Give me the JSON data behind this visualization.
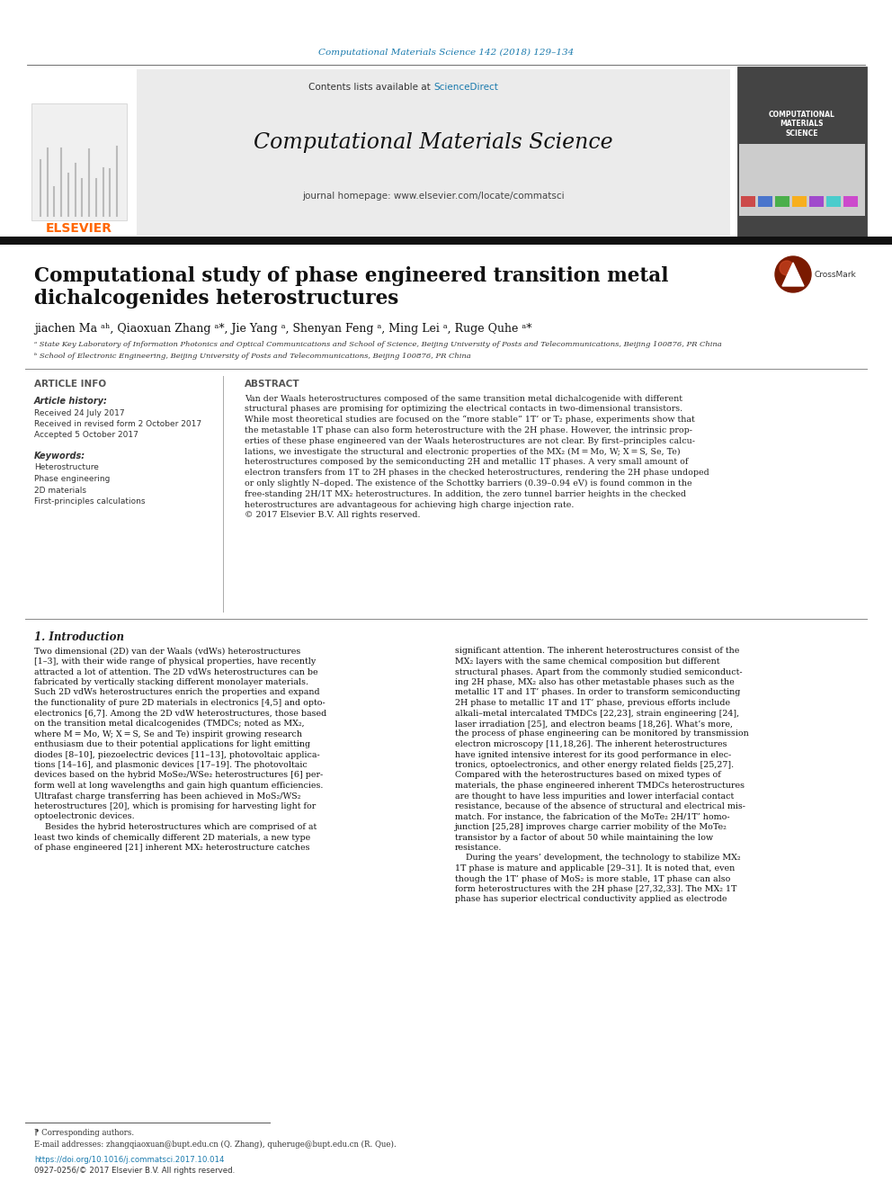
{
  "journal_ref": "Computational Materials Science 142 (2018) 129–134",
  "journal_ref_color": "#1a7aad",
  "header_bg": "#ebebeb",
  "contents_line": "Contents lists available at ",
  "sciencedirect": "ScienceDirect",
  "sciencedirect_color": "#1a7aad",
  "journal_title": "Computational Materials Science",
  "journal_homepage": "journal homepage: www.elsevier.com/locate/commatsci",
  "elsevier_color": "#ff6600",
  "paper_title_line1": "Computational study of phase engineered transition metal",
  "paper_title_line2": "dichalcogenides heterostructures",
  "authors_line": "jiachen Ma ᵃʰ, Qiaoxuan Zhang ᵃ*, Jie Yang ᵃ, Shenyan Feng ᵃ, Ming Lei ᵃ, Ruge Quhe ᵃ*",
  "affil_a": "ᵃ State Key Laboratory of Information Photonics and Optical Communications and School of Science, Beijing University of Posts and Telecommunications, Beijing 100876, PR China",
  "affil_b": "ᵇ School of Electronic Engineering, Beijing University of Posts and Telecommunications, Beijing 100876, PR China",
  "article_info_title": "ARTICLE INFO",
  "abstract_title": "ABSTRACT",
  "article_history_title": "Article history:",
  "received": "Received 24 July 2017",
  "revised": "Received in revised form 2 October 2017",
  "accepted": "Accepted 5 October 2017",
  "keywords_title": "Keywords:",
  "keywords": [
    "Heterostructure",
    "Phase engineering",
    "2D materials",
    "First-principles calculations"
  ],
  "abstract_text": "Van der Waals heterostructures composed of the same transition metal dichalcogenide with different\nstructural phases are promising for optimizing the electrical contacts in two-dimensional transistors.\nWhile most theoretical studies are focused on the “more stable” 1T’ or T₂ phase, experiments show that\nthe metastable 1T phase can also form heterostructure with the 2H phase. However, the intrinsic prop-\nerties of these phase engineered van der Waals heterostructures are not clear. By first–principles calcu-\nlations, we investigate the structural and electronic properties of the MX₂ (M = Mo, W; X = S, Se, Te)\nheterostructures composed by the semiconducting 2H and metallic 1T phases. A very small amount of\nelectron transfers from 1T to 2H phases in the checked heterostructures, rendering the 2H phase undoped\nor only slightly N–doped. The existence of the Schottky barriers (0.39–0.94 eV) is found common in the\nfree-standing 2H/1T MX₂ heterostructures. In addition, the zero tunnel barrier heights in the checked\nheterostructures are advantageous for achieving high charge injection rate.\n© 2017 Elsevier B.V. All rights reserved.",
  "intro_title": "1. Introduction",
  "intro_col1_lines": [
    "Two dimensional (2D) van der Waals (vdWs) heterostructures",
    "[1–3], with their wide range of physical properties, have recently",
    "attracted a lot of attention. The 2D vdWs heterostructures can be",
    "fabricated by vertically stacking different monolayer materials.",
    "Such 2D vdWs heterostructures enrich the properties and expand",
    "the functionality of pure 2D materials in electronics [4,5] and opto-",
    "electronics [6,7]. Among the 2D vdW heterostructures, those based",
    "on the transition metal dicalcogenides (TMDCs; noted as MX₂,",
    "where M = Mo, W; X = S, Se and Te) inspirit growing research",
    "enthusiasm due to their potential applications for light emitting",
    "diodes [8–10], piezoelectric devices [11–13], photovoltaic applica-",
    "tions [14–16], and plasmonic devices [17–19]. The photovoltaic",
    "devices based on the hybrid MoSe₂/WSe₂ heterostructures [6] per-",
    "form well at long wavelengths and gain high quantum efficiencies.",
    "Ultrafast charge transferring has been achieved in MoS₂/WS₂",
    "heterostructures [20], which is promising for harvesting light for",
    "optoelectronic devices.",
    "    Besides the hybrid heterostructures which are comprised of at",
    "least two kinds of chemically different 2D materials, a new type",
    "of phase engineered [21] inherent MX₂ heterostructure catches"
  ],
  "intro_col2_lines": [
    "significant attention. The inherent heterostructures consist of the",
    "MX₂ layers with the same chemical composition but different",
    "structural phases. Apart from the commonly studied semiconduct-",
    "ing 2H phase, MX₂ also has other metastable phases such as the",
    "metallic 1T and 1T’ phases. In order to transform semiconducting",
    "2H phase to metallic 1T and 1T’ phase, previous efforts include",
    "alkali–metal intercalated TMDCs [22,23], strain engineering [24],",
    "laser irradiation [25], and electron beams [18,26]. What’s more,",
    "the process of phase engineering can be monitored by transmission",
    "electron microscopy [11,18,26]. The inherent heterostructures",
    "have ignited intensive interest for its good performance in elec-",
    "tronics, optoelectronics, and other energy related fields [25,27].",
    "Compared with the heterostructures based on mixed types of",
    "materials, the phase engineered inherent TMDCs heterostructures",
    "are thought to have less impurities and lower interfacial contact",
    "resistance, because of the absence of structural and electrical mis-",
    "match. For instance, the fabrication of the MoTe₂ 2H/1T’ homo-",
    "junction [25,28] improves charge carrier mobility of the MoTe₂",
    "transistor by a factor of about 50 while maintaining the low",
    "resistance.",
    "    During the years’ development, the technology to stabilize MX₂",
    "1T phase is mature and applicable [29–31]. It is noted that, even",
    "though the 1T’ phase of MoS₂ is more stable, 1T phase can also",
    "form heterostructures with the 2H phase [27,32,33]. The MX₂ 1T",
    "phase has superior electrical conductivity applied as electrode"
  ],
  "footnote_star": "⁋ Corresponding authors.",
  "footnote_email": "E-mail addresses: zhangqiaoxuan@bupt.edu.cn (Q. Zhang), quheruge@bupt.edu.cn (R. Que).",
  "footnote_doi": "https://doi.org/10.1016/j.commatsci.2017.10.014",
  "footnote_issn": "0927-0256/© 2017 Elsevier B.V. All rights reserved.",
  "bg_color": "#ffffff",
  "text_color": "#000000",
  "link_color": "#1a7aad"
}
